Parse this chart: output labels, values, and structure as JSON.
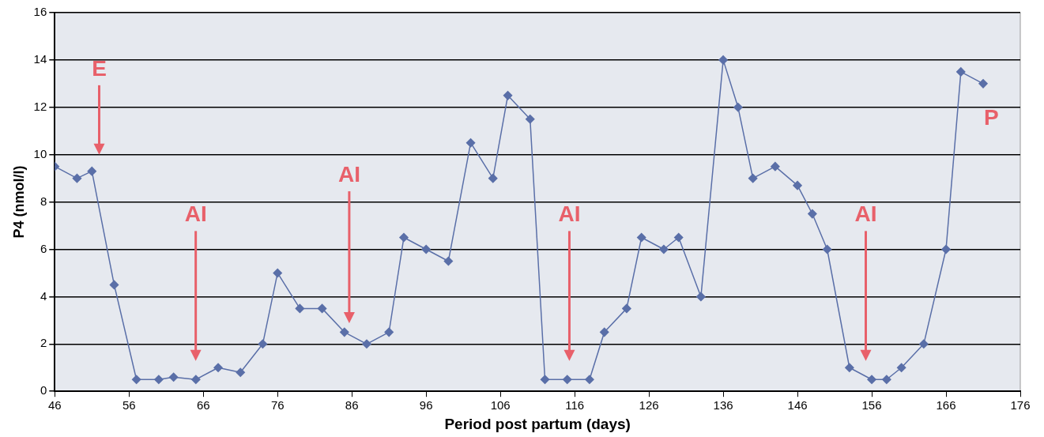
{
  "chart_data": {
    "type": "line",
    "xlabel": "Period post partum (days)",
    "ylabel": "P4 (nmol/l)",
    "x": [
      46,
      49,
      51,
      54,
      57,
      60,
      62,
      65,
      68,
      71,
      74,
      76,
      79,
      82,
      85,
      88,
      91,
      93,
      96,
      99,
      102,
      105,
      107,
      110,
      112,
      115,
      118,
      120,
      123,
      125,
      128,
      130,
      133,
      136,
      138,
      140,
      143,
      146,
      148,
      150,
      153,
      156,
      158,
      160,
      163,
      166,
      168,
      171
    ],
    "series": [
      {
        "color": "#5a6fa8",
        "values": [
          9.5,
          9.0,
          9.3,
          4.5,
          0.5,
          0.5,
          0.6,
          0.5,
          1.0,
          0.8,
          2.0,
          5.0,
          3.5,
          3.5,
          2.5,
          2.0,
          2.5,
          6.5,
          6.0,
          5.5,
          10.5,
          9.0,
          12.5,
          11.5,
          0.5,
          0.5,
          0.5,
          2.5,
          3.5,
          6.5,
          6.0,
          6.5,
          4.0,
          14.0,
          12.0,
          9.0,
          9.5,
          8.7,
          7.5,
          6.0,
          1.0,
          0.5,
          0.5,
          1.0,
          2.0,
          6.0,
          13.5,
          13.0
        ]
      }
    ],
    "xlim": [
      46,
      176
    ],
    "xticks": [
      46,
      56,
      66,
      76,
      86,
      96,
      106,
      116,
      126,
      136,
      146,
      156,
      166,
      176
    ],
    "ylim": [
      0,
      16
    ],
    "yticks": [
      0,
      2,
      4,
      6,
      8,
      10,
      12,
      14,
      16
    ],
    "grid": "y",
    "legend": false,
    "marker": "diamond",
    "line_style": "solid",
    "annotations": [
      "E",
      "AI",
      "AI",
      "AI",
      "AI",
      "P"
    ]
  }
}
